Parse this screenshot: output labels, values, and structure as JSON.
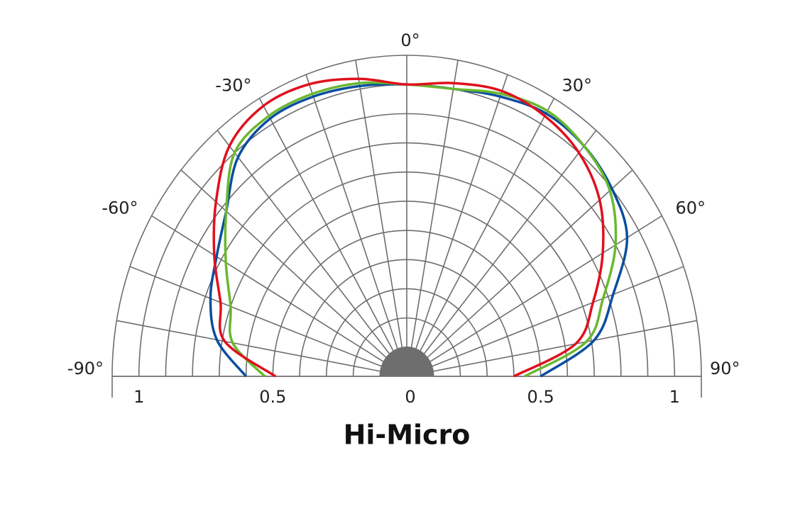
{
  "chart_data": {
    "type": "polar-half",
    "title": "Hi-Micro",
    "theta": [
      -90,
      -80,
      -70,
      -60,
      -50,
      -40,
      -30,
      -20,
      -10,
      0,
      10,
      20,
      30,
      40,
      50,
      60,
      70,
      80,
      90
    ],
    "series": [
      {
        "color": "#0a4ea0",
        "values": [
          0.6,
          0.72,
          0.78,
          0.82,
          0.88,
          0.98,
          1.02,
          1.02,
          1.01,
          1.0,
          1.0,
          1.02,
          1.04,
          1.03,
          1.0,
          0.95,
          0.82,
          0.71,
          0.5
        ]
      },
      {
        "color": "#6ab82e",
        "values": [
          0.53,
          0.66,
          0.7,
          0.78,
          0.88,
          1.0,
          1.03,
          1.03,
          1.02,
          1.0,
          1.0,
          1.03,
          1.05,
          1.03,
          0.99,
          0.9,
          0.78,
          0.68,
          0.44
        ]
      },
      {
        "color": "#e0101e",
        "values": [
          0.49,
          0.69,
          0.74,
          0.83,
          0.93,
          1.03,
          1.07,
          1.065,
          1.035,
          1.0,
          1.02,
          1.04,
          1.03,
          1.0,
          0.94,
          0.845,
          0.74,
          0.64,
          0.4
        ]
      }
    ],
    "rlim": [
      0,
      1.1
    ],
    "rticks": [
      0.1,
      0.2,
      0.3,
      0.4,
      0.5,
      0.6,
      0.7,
      0.8,
      0.9,
      1.0,
      1.1
    ],
    "r_axis_labels": [
      1,
      0.5,
      0,
      0.5,
      1
    ],
    "r_axis_sides": [
      -1,
      -1,
      0,
      1,
      1
    ],
    "thetaticks": [
      -90,
      -80,
      -70,
      -60,
      -50,
      -40,
      -30,
      -20,
      -10,
      0,
      10,
      20,
      30,
      40,
      50,
      60,
      70,
      80,
      90
    ],
    "theta_labels": [
      {
        "value": -90,
        "label": "-90°"
      },
      {
        "value": -60,
        "label": "-60°"
      },
      {
        "value": -30,
        "label": "-30°"
      },
      {
        "value": 0,
        "label": "0°"
      },
      {
        "value": 30,
        "label": "30°"
      },
      {
        "value": 60,
        "label": "60°"
      },
      {
        "value": 90,
        "label": "90°"
      }
    ]
  }
}
